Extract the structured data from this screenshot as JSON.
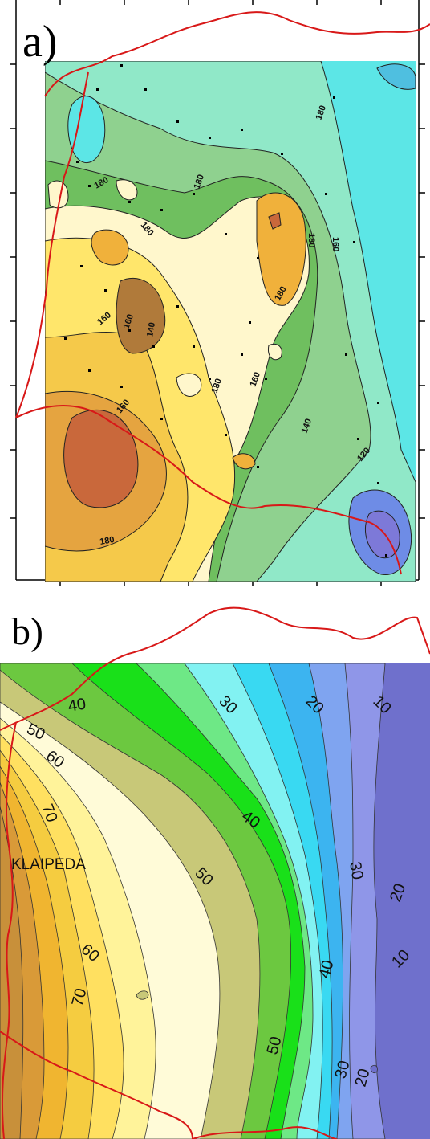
{
  "panel_a": {
    "letter": "a)",
    "contour_labels": [
      "180",
      "180",
      "180",
      "180",
      "180",
      "160",
      "180",
      "160",
      "140",
      "160",
      "180",
      "160",
      "160",
      "140",
      "120",
      "180"
    ]
  },
  "panel_b": {
    "letter": "b)",
    "city_label": "KLAIPEDA",
    "contour_labels": [
      "40",
      "30",
      "20",
      "10",
      "50",
      "60",
      "40",
      "70",
      "30",
      "50",
      "20",
      "60",
      "10",
      "70",
      "40",
      "50",
      "30",
      "20"
    ]
  },
  "colors": {
    "border": "#d81818",
    "a_cyan": "#5ce6e6",
    "a_green": "#8fd18f",
    "a_yellow": "#ffe66b",
    "a_orange": "#f0b13b",
    "a_brown": "#c9683b",
    "a_blue": "#6e8ce6",
    "b_blue": "#6f70cc",
    "b_green": "#19e019",
    "b_orange": "#f0b530"
  }
}
